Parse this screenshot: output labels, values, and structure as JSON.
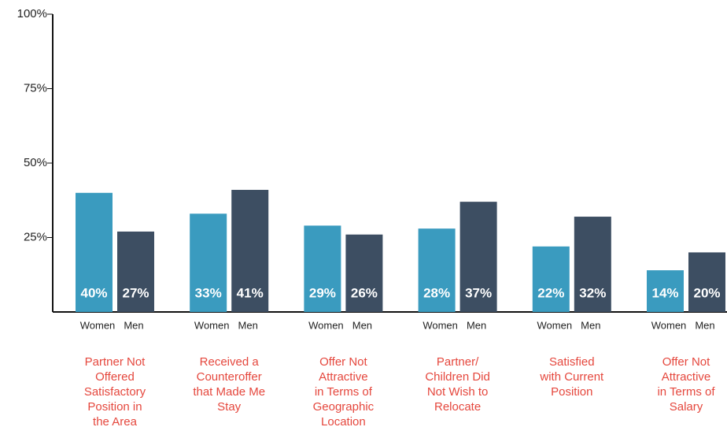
{
  "chart_data": {
    "type": "bar",
    "categories": [
      "Partner Not\nOffered\nSatisfactory\nPosition in\nthe Area",
      "Received a\nCounteroffer\nthat Made Me\nStay",
      "Offer Not\nAttractive\nin Terms of\nGeographic\nLocation",
      "Partner/\nChildren Did\nNot Wish to\nRelocate",
      "Satisfied\nwith Current\nPosition",
      "Offer Not\nAttractive\nin Terms of\nSalary"
    ],
    "series": [
      {
        "name": "Women",
        "color": "#3a9bbf",
        "values": [
          40,
          33,
          29,
          28,
          22,
          14
        ],
        "value_labels": [
          "40%",
          "33%",
          "29%",
          "28%",
          "22%",
          "14%"
        ]
      },
      {
        "name": "Men",
        "color": "#3d4e62",
        "values": [
          27,
          41,
          26,
          37,
          32,
          20
        ],
        "value_labels": [
          "27%",
          "41%",
          "26%",
          "37%",
          "32%",
          "20%"
        ]
      }
    ],
    "ylim": [
      0,
      100
    ],
    "yticks": [
      {
        "value": 25,
        "label": "25%"
      },
      {
        "value": 50,
        "label": "50%"
      },
      {
        "value": 75,
        "label": "75%"
      },
      {
        "value": 100,
        "label": "100%"
      }
    ]
  }
}
